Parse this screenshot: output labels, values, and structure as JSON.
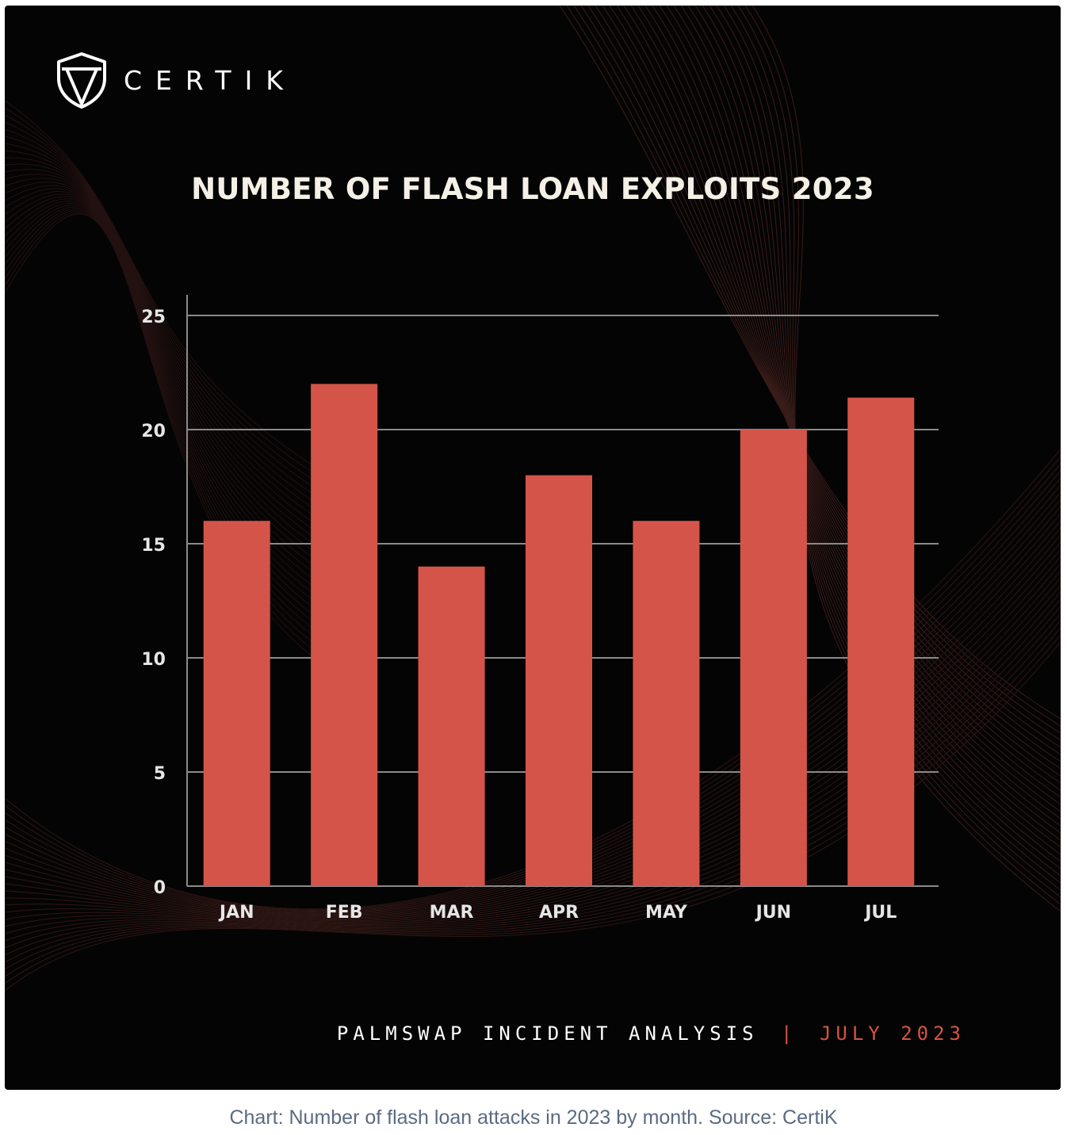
{
  "brand": {
    "name": "CERTIK"
  },
  "colors": {
    "background": "#050404",
    "bar": "#d5544a",
    "grid": "#8a8a8a",
    "accent": "#d5543f",
    "text": "#f5f0e6"
  },
  "chart_data": {
    "type": "bar",
    "title": "NUMBER OF FLASH LOAN EXPLOITS 2023",
    "categories": [
      "JAN",
      "FEB",
      "MAR",
      "APR",
      "MAY",
      "JUN",
      "JUL"
    ],
    "values": [
      16,
      22,
      14,
      18,
      16,
      20,
      21.4
    ],
    "ylim": [
      0,
      25
    ],
    "yticks": [
      0,
      5,
      10,
      15,
      20,
      25
    ],
    "xlabel": "",
    "ylabel": "",
    "grid": true
  },
  "footer": {
    "left": "PALMSWAP INCIDENT ANALYSIS",
    "separator": "|",
    "right": "JULY 2023"
  },
  "caption": "Chart: Number of flash loan attacks in 2023 by month. Source: CertiK"
}
